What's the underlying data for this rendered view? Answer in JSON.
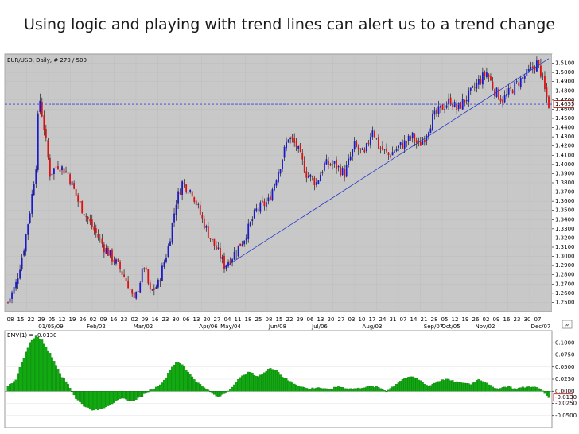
{
  "slide": {
    "title": "Using logic and playing with trend lines can alert us to a trend change"
  },
  "chart_data": [
    {
      "type": "candlestick",
      "header": "EUR/USD, Daily, # 270 / 500",
      "ylim": [
        1.24,
        1.52
      ],
      "y_ticks": [
        "1.5100",
        "1.5000",
        "1.4900",
        "1.4800",
        "1.4700",
        "1.4600",
        "1.4500",
        "1.4400",
        "1.4300",
        "1.4200",
        "1.4100",
        "1.4000",
        "1.3900",
        "1.3800",
        "1.3700",
        "1.3600",
        "1.3500",
        "1.3400",
        "1.3300",
        "1.3200",
        "1.3100",
        "1.3000",
        "1.2900",
        "1.2800",
        "1.2700",
        "1.2600",
        "1.2500"
      ],
      "y_tick_values": [
        1.51,
        1.5,
        1.49,
        1.48,
        1.47,
        1.46,
        1.45,
        1.44,
        1.43,
        1.42,
        1.41,
        1.4,
        1.39,
        1.38,
        1.37,
        1.36,
        1.35,
        1.34,
        1.33,
        1.32,
        1.31,
        1.3,
        1.29,
        1.28,
        1.27,
        1.26,
        1.25
      ],
      "current_price_label": "1.4655",
      "current_price": 1.4655,
      "day_ticks": [
        "08",
        "15",
        "22",
        "29",
        "05",
        "12",
        "19",
        "26",
        "02",
        "09",
        "16",
        "23",
        "02",
        "09",
        "16",
        "23",
        "30",
        "06",
        "13",
        "20",
        "27",
        "04",
        "11",
        "18",
        "25",
        "08",
        "15",
        "22",
        "29",
        "06",
        "13",
        "20",
        "27",
        "03",
        "10",
        "17",
        "24",
        "31",
        "07",
        "14",
        "21",
        "28",
        "05",
        "12",
        "19",
        "26",
        "02",
        "09",
        "16",
        "23",
        "30",
        "07"
      ],
      "month_ticks": [
        "01/05/09",
        "Feb/02",
        "Mar/02",
        "Apr/06",
        "May/04",
        "Jun/08",
        "Jul/06",
        "Aug/03",
        "Sep/07",
        "Oct/05",
        "Nov/02",
        "Dec/07"
      ],
      "anchor_closes": [
        [
          0,
          1.25
        ],
        [
          4,
          1.27
        ],
        [
          8,
          1.31
        ],
        [
          11,
          1.35
        ],
        [
          14,
          1.4
        ],
        [
          15,
          1.45
        ],
        [
          16,
          1.47
        ],
        [
          18,
          1.44
        ],
        [
          21,
          1.39
        ],
        [
          25,
          1.4
        ],
        [
          30,
          1.39
        ],
        [
          35,
          1.36
        ],
        [
          40,
          1.34
        ],
        [
          48,
          1.31
        ],
        [
          55,
          1.29
        ],
        [
          60,
          1.27
        ],
        [
          63,
          1.25
        ],
        [
          68,
          1.29
        ],
        [
          71,
          1.26
        ],
        [
          75,
          1.27
        ],
        [
          80,
          1.31
        ],
        [
          84,
          1.36
        ],
        [
          87,
          1.38
        ],
        [
          92,
          1.37
        ],
        [
          97,
          1.34
        ],
        [
          101,
          1.32
        ],
        [
          106,
          1.3
        ],
        [
          108,
          1.29
        ],
        [
          112,
          1.3
        ],
        [
          118,
          1.32
        ],
        [
          124,
          1.35
        ],
        [
          130,
          1.36
        ],
        [
          136,
          1.4
        ],
        [
          140,
          1.43
        ],
        [
          144,
          1.42
        ],
        [
          149,
          1.39
        ],
        [
          154,
          1.38
        ],
        [
          158,
          1.4
        ],
        [
          163,
          1.4
        ],
        [
          168,
          1.39
        ],
        [
          173,
          1.42
        ],
        [
          178,
          1.41
        ],
        [
          182,
          1.44
        ],
        [
          185,
          1.42
        ],
        [
          190,
          1.41
        ],
        [
          196,
          1.42
        ],
        [
          202,
          1.43
        ],
        [
          205,
          1.42
        ],
        [
          208,
          1.43
        ],
        [
          212,
          1.45
        ],
        [
          216,
          1.46
        ],
        [
          221,
          1.47
        ],
        [
          224,
          1.46
        ],
        [
          228,
          1.47
        ],
        [
          232,
          1.48
        ],
        [
          235,
          1.49
        ],
        [
          239,
          1.5
        ],
        [
          243,
          1.48
        ],
        [
          247,
          1.47
        ],
        [
          251,
          1.48
        ],
        [
          255,
          1.49
        ],
        [
          260,
          1.5
        ],
        [
          264,
          1.51
        ],
        [
          266,
          1.5
        ],
        [
          268,
          1.48
        ],
        [
          270,
          1.465
        ]
      ],
      "trendline": {
        "from": [
          108,
          1.288
        ],
        "to": [
          270,
          1.515
        ]
      }
    },
    {
      "type": "histogram",
      "header": "EMV(1) = -0.0130",
      "ylim": [
        -0.075,
        0.125
      ],
      "y_ticks": [
        "0.1000",
        "0.0750",
        "0.0500",
        "0.0250",
        "0.0000",
        "-0.0250",
        "-0.0500"
      ],
      "y_tick_values": [
        0.1,
        0.075,
        0.05,
        0.025,
        0.0,
        -0.025,
        -0.05
      ],
      "current_value_label": "-0.0130",
      "current_value": -0.013,
      "anchor_values": [
        [
          0,
          0.01
        ],
        [
          4,
          0.025
        ],
        [
          7,
          0.06
        ],
        [
          11,
          0.1
        ],
        [
          14,
          0.115
        ],
        [
          17,
          0.105
        ],
        [
          20,
          0.085
        ],
        [
          24,
          0.055
        ],
        [
          27,
          0.03
        ],
        [
          30,
          0.015
        ],
        [
          32,
          0.0
        ],
        [
          34,
          -0.015
        ],
        [
          38,
          -0.03
        ],
        [
          43,
          -0.04
        ],
        [
          47,
          -0.035
        ],
        [
          52,
          -0.025
        ],
        [
          57,
          -0.015
        ],
        [
          62,
          -0.02
        ],
        [
          67,
          -0.01
        ],
        [
          70,
          0.0
        ],
        [
          74,
          0.008
        ],
        [
          78,
          0.022
        ],
        [
          81,
          0.045
        ],
        [
          84,
          0.06
        ],
        [
          87,
          0.055
        ],
        [
          90,
          0.04
        ],
        [
          94,
          0.02
        ],
        [
          98,
          0.008
        ],
        [
          102,
          -0.005
        ],
        [
          105,
          -0.012
        ],
        [
          108,
          -0.005
        ],
        [
          111,
          0.005
        ],
        [
          114,
          0.02
        ],
        [
          118,
          0.035
        ],
        [
          121,
          0.04
        ],
        [
          124,
          0.03
        ],
        [
          128,
          0.038
        ],
        [
          131,
          0.048
        ],
        [
          134,
          0.044
        ],
        [
          137,
          0.03
        ],
        [
          141,
          0.02
        ],
        [
          145,
          0.012
        ],
        [
          150,
          0.005
        ],
        [
          155,
          0.008
        ],
        [
          160,
          0.003
        ],
        [
          165,
          0.01
        ],
        [
          170,
          0.005
        ],
        [
          175,
          0.006
        ],
        [
          180,
          0.01
        ],
        [
          185,
          0.008
        ],
        [
          189,
          0.0
        ],
        [
          193,
          0.012
        ],
        [
          197,
          0.025
        ],
        [
          202,
          0.03
        ],
        [
          206,
          0.022
        ],
        [
          210,
          0.01
        ],
        [
          214,
          0.02
        ],
        [
          219,
          0.025
        ],
        [
          223,
          0.02
        ],
        [
          227,
          0.018
        ],
        [
          231,
          0.015
        ],
        [
          235,
          0.025
        ],
        [
          239,
          0.018
        ],
        [
          243,
          0.005
        ],
        [
          247,
          0.008
        ],
        [
          250,
          0.01
        ],
        [
          253,
          0.005
        ],
        [
          257,
          0.008
        ],
        [
          262,
          0.01
        ],
        [
          266,
          0.004
        ],
        [
          270,
          -0.013
        ]
      ]
    }
  ]
}
